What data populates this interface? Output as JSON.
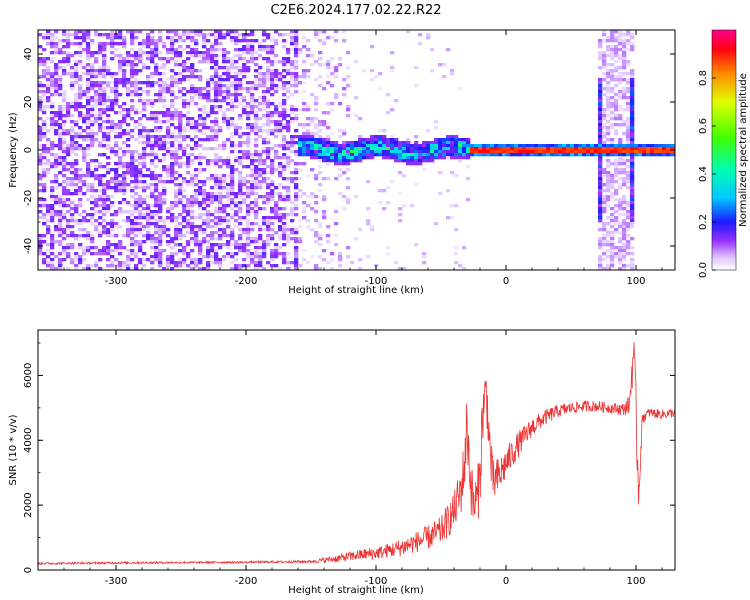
{
  "figure": {
    "title": "C2E6.2024.177.02.22.R22"
  },
  "chart_data": [
    {
      "type": "heatmap",
      "xlabel": "Height of straight line (km)",
      "ylabel": "Frequency (Hz)",
      "xlim": [
        -360,
        130
      ],
      "ylim": [
        -50,
        50
      ],
      "xticks": [
        -300,
        -200,
        -100,
        0,
        100
      ],
      "yticks": [
        -40,
        -20,
        0,
        20,
        40
      ],
      "colorbar": {
        "label": "Normalized spectral amplitude",
        "range": [
          0,
          1
        ],
        "ticks": [
          0.0,
          0.2,
          0.4,
          0.6,
          0.8
        ],
        "colormap": [
          "#ffffff",
          "#d9b3ff",
          "#8a00ff",
          "#0000ff",
          "#00ffff",
          "#00ff00",
          "#ffff00",
          "#ff0000",
          "#ff00aa"
        ]
      },
      "regions": [
        {
          "x_range": [
            -360,
            -160
          ],
          "description_level": 0.08
        },
        {
          "x_range": [
            -160,
            -30
          ],
          "signal_center_hz": 0,
          "signal_level": 0.35
        },
        {
          "x_range": [
            -30,
            130
          ],
          "signal_center_hz": 0,
          "signal_level": 0.9
        },
        {
          "x_range": [
            72,
            95
          ],
          "broadband_level": 0.1
        }
      ],
      "grid": false
    },
    {
      "type": "line",
      "xlabel": "Height of straight line (km)",
      "ylabel": "SNR (10 * v/v)",
      "xlim": [
        -360,
        130
      ],
      "ylim": [
        0,
        7400
      ],
      "xticks": [
        -300,
        -200,
        -100,
        0,
        100
      ],
      "yticks": [
        0,
        2000,
        4000,
        6000
      ],
      "series": [
        {
          "color": "#ee3333",
          "x": [
            -360,
            -300,
            -250,
            -200,
            -150,
            -130,
            -120,
            -110,
            -100,
            -90,
            -80,
            -70,
            -60,
            -50,
            -45,
            -40,
            -35,
            -32,
            -30,
            -27,
            -25,
            -22,
            -20,
            -18,
            -15,
            -12,
            -10,
            -5,
            0,
            10,
            20,
            30,
            40,
            50,
            60,
            70,
            80,
            90,
            95,
            98,
            100,
            102,
            105,
            110,
            120,
            130
          ],
          "y": [
            200,
            220,
            230,
            240,
            260,
            350,
            420,
            480,
            520,
            600,
            700,
            850,
            1000,
            1200,
            1500,
            1800,
            2400,
            3200,
            4500,
            2600,
            2000,
            2200,
            3000,
            4800,
            5500,
            3500,
            2700,
            2900,
            3300,
            3900,
            4400,
            4700,
            4900,
            5000,
            5050,
            5050,
            5000,
            4950,
            5100,
            6800,
            4800,
            2400,
            4700,
            4850,
            4800,
            4850
          ],
          "noise_amplitude": [
            30,
            30,
            30,
            30,
            40,
            120,
            150,
            180,
            200,
            240,
            280,
            320,
            380,
            450,
            520,
            600,
            800,
            900,
            1000,
            900,
            800,
            900,
            1000,
            1000,
            900,
            800,
            700,
            600,
            500,
            400,
            300,
            250,
            200,
            180,
            170,
            170,
            170,
            200,
            300,
            900,
            900,
            600,
            200,
            150,
            150,
            150
          ]
        }
      ],
      "grid": false
    }
  ]
}
